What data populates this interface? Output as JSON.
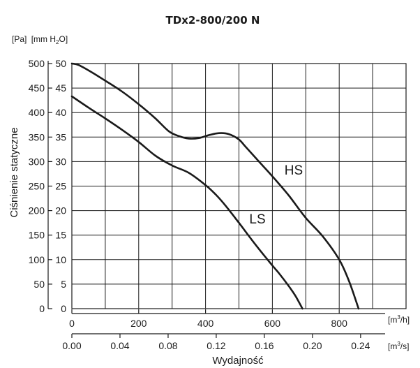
{
  "chart_data": {
    "type": "line",
    "title": "TDx2-800/200 N",
    "ylabel": "Ciśnienie statyczne",
    "xlabel": "Wydajność",
    "y_units": {
      "pa": "[Pa]",
      "mm_h2o": "[mm H",
      "mm_h2o_sub": "2",
      "mm_h2o_end": "O]"
    },
    "x_units": {
      "m3h": "[m",
      "m3h_sup": "3",
      "m3h_end": "/h]",
      "m3s": "[m",
      "m3s_sup": "3",
      "m3s_end": "/s]"
    },
    "x_m3h": {
      "range": [
        0,
        1000
      ],
      "ticks": [
        0,
        100,
        200,
        300,
        400,
        500,
        600,
        700,
        800,
        900,
        1000
      ],
      "labels": [
        "0",
        "200",
        "400",
        "600",
        "800"
      ],
      "label_values": [
        0,
        200,
        400,
        600,
        800
      ]
    },
    "x_m3s": {
      "labels": [
        "0.00",
        "0.04",
        "0.08",
        "0.12",
        "0.16",
        "0.20",
        "0.24"
      ],
      "label_values": [
        0,
        0.04,
        0.08,
        0.12,
        0.16,
        0.2,
        0.24
      ]
    },
    "y_pa": {
      "range": [
        0,
        500
      ],
      "ticks": [
        "0",
        "50",
        "100",
        "150",
        "200",
        "250",
        "300",
        "350",
        "400",
        "450",
        "500"
      ]
    },
    "y_mm": {
      "range": [
        0,
        50
      ],
      "ticks": [
        "0",
        "5",
        "10",
        "15",
        "20",
        "25",
        "30",
        "35",
        "40",
        "45",
        "50"
      ]
    },
    "grid": true,
    "series": [
      {
        "name": "HS",
        "x": [
          0,
          20,
          60,
          100,
          150,
          200,
          250,
          290,
          320,
          350,
          380,
          410,
          440,
          470,
          500,
          520,
          560,
          600,
          650,
          700,
          750,
          800,
          830,
          858
        ],
        "y": [
          500,
          497,
          482,
          465,
          443,
          417,
          388,
          362,
          352,
          347,
          348,
          354,
          358,
          356,
          345,
          330,
          300,
          270,
          230,
          185,
          148,
          100,
          55,
          0
        ]
      },
      {
        "name": "LS",
        "x": [
          0,
          50,
          100,
          150,
          200,
          250,
          300,
          350,
          400,
          430,
          460,
          500,
          550,
          600,
          620,
          650,
          670,
          690
        ],
        "y": [
          433,
          410,
          388,
          365,
          340,
          312,
          292,
          277,
          252,
          233,
          210,
          175,
          130,
          88,
          72,
          45,
          25,
          0
        ]
      }
    ]
  }
}
